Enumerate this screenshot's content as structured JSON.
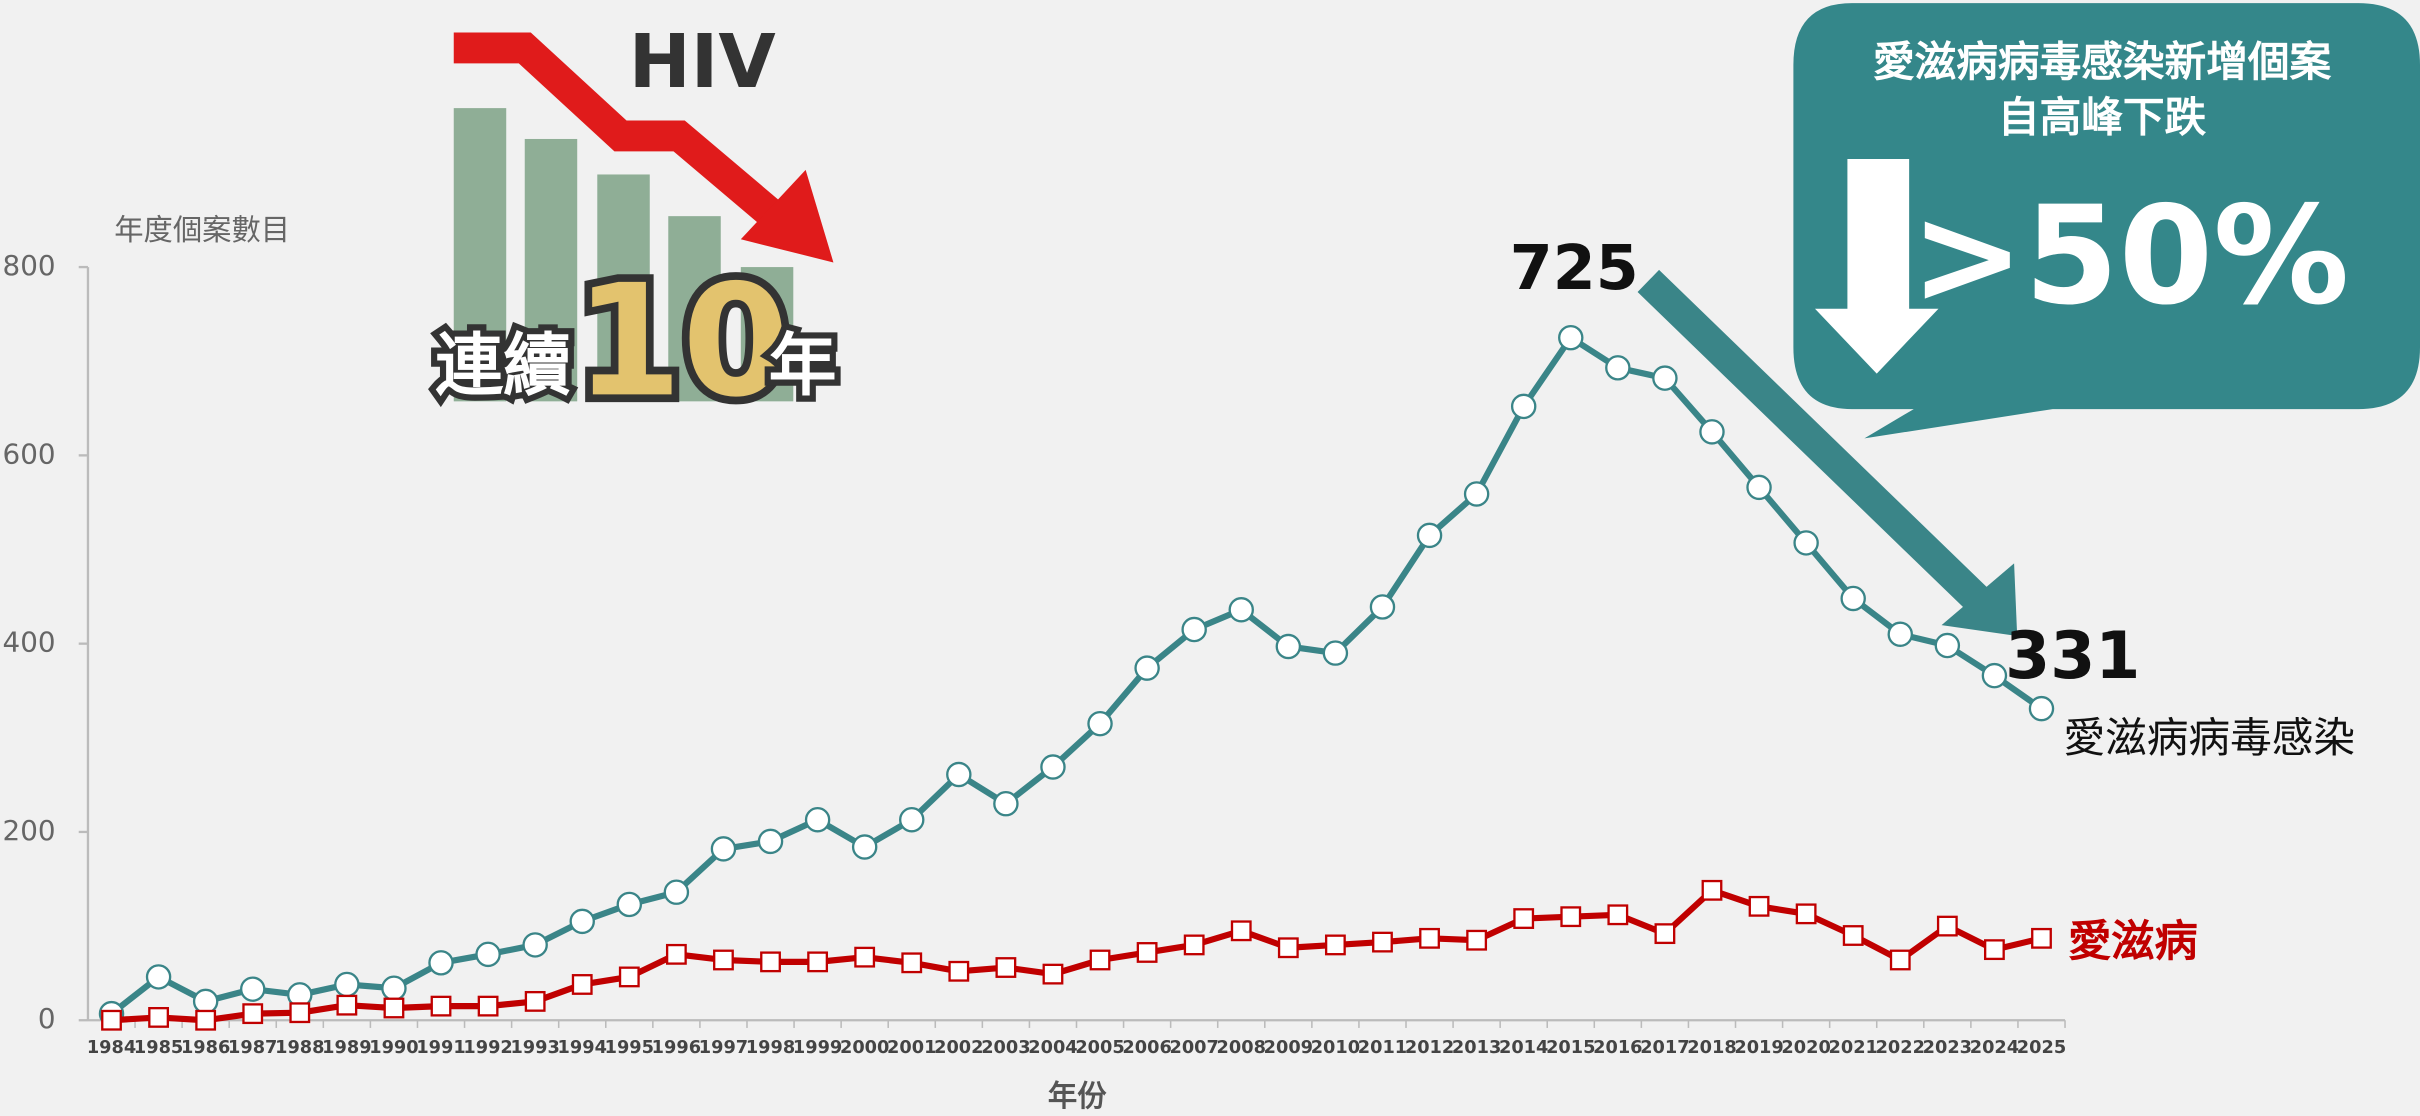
{
  "chart_data": {
    "type": "line",
    "y_axis_title": "年度個案數目",
    "x_axis_title": "年份",
    "categories": [
      "1984",
      "1985",
      "1986",
      "1987",
      "1988",
      "1989",
      "1990",
      "1991",
      "1992",
      "1993",
      "1994",
      "1995",
      "1996",
      "1997",
      "1998",
      "1999",
      "2000",
      "2001",
      "2002",
      "2003",
      "2004",
      "2005",
      "2006",
      "2007",
      "2008",
      "2009",
      "2010",
      "2011",
      "2012",
      "2013",
      "2014",
      "2015",
      "2016",
      "2017",
      "2018",
      "2019",
      "2020",
      "2021",
      "2022",
      "2023",
      "2024",
      "2025"
    ],
    "series": [
      {
        "name": "愛滋病病毒感染",
        "color": "#3a8588",
        "marker": "circle",
        "values": [
          7,
          46,
          20,
          33,
          27,
          38,
          34,
          61,
          70,
          80,
          105,
          123,
          136,
          182,
          190,
          213,
          184,
          213,
          261,
          230,
          269,
          315,
          374,
          415,
          436,
          397,
          390,
          439,
          515,
          559,
          652,
          725,
          693,
          682,
          625,
          566,
          507,
          448,
          410,
          398,
          366,
          331
        ]
      },
      {
        "name": "愛滋病",
        "color": "#c00000",
        "marker": "square",
        "values": [
          0,
          3,
          0,
          7,
          8,
          16,
          13,
          15,
          15,
          20,
          38,
          46,
          70,
          64,
          62,
          62,
          67,
          61,
          52,
          56,
          49,
          64,
          72,
          80,
          95,
          77,
          80,
          83,
          87,
          85,
          108,
          110,
          112,
          92,
          138,
          121,
          113,
          90,
          64,
          100,
          75,
          87
        ]
      }
    ],
    "ylim": [
      0,
      800
    ],
    "yticks": [
      0,
      200,
      400,
      600,
      800
    ],
    "annotations": [
      "725",
      "331"
    ],
    "callout": {
      "lines": [
        "愛滋病病毒感染新增個案",
        "自高峰下跌"
      ],
      "value": ">50%"
    },
    "badge": {
      "label": "HIV",
      "text1": "連續",
      "number": "10",
      "text2": "年"
    }
  }
}
